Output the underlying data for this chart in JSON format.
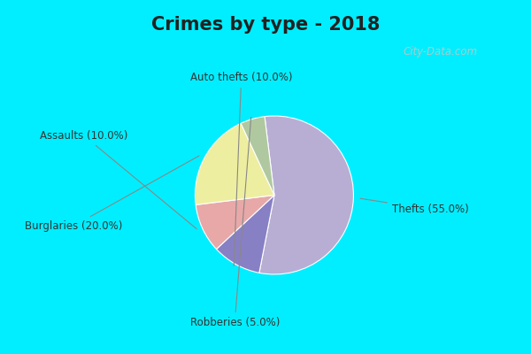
{
  "title": "Crimes by type - 2018",
  "title_fontsize": 15,
  "title_fontweight": "bold",
  "slices": [
    {
      "label": "Thefts",
      "value": 55.0,
      "color": "#b8aed4"
    },
    {
      "label": "Auto thefts",
      "value": 10.0,
      "color": "#8880c4"
    },
    {
      "label": "Assaults",
      "value": 10.0,
      "color": "#e8a8a8"
    },
    {
      "label": "Burglaries",
      "value": 20.0,
      "color": "#eeeea0"
    },
    {
      "label": "Robberies",
      "value": 5.0,
      "color": "#b0c8a0"
    }
  ],
  "fig_bg": "#00eeff",
  "inner_bg": "#d8ede4",
  "label_fontsize": 8.5,
  "label_color": "#333333",
  "watermark": "City-Data.com",
  "watermark_color": "#aacccc",
  "title_color": "#222222",
  "label_positions": {
    "Thefts": [
      0.62,
      -0.08,
      "left"
    ],
    "Auto thefts": [
      -0.05,
      0.54,
      "center"
    ],
    "Assaults": [
      -0.57,
      0.25,
      "right"
    ],
    "Burglaries": [
      -0.57,
      -0.18,
      "right"
    ],
    "Robberies": [
      -0.1,
      -0.58,
      "center"
    ]
  }
}
